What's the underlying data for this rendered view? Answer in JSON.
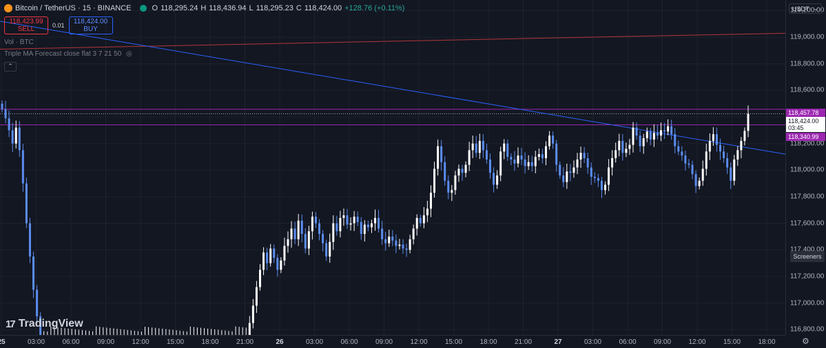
{
  "header": {
    "symbol": "Bitcoin / TetherUS · 15 · BINANCE",
    "o_label": "O",
    "o_value": "118,295.24",
    "h_label": "H",
    "h_value": "118,436.94",
    "l_label": "L",
    "l_value": "118,295.23",
    "c_label": "C",
    "c_value": "118,424.00",
    "change": "+128.76 (+0.11%)"
  },
  "trade": {
    "sell_price": "118,423.99",
    "sell_label": "SELL",
    "quantity": "0.01",
    "buy_price": "118,424.00",
    "buy_label": "BUY"
  },
  "indicators": {
    "volume": "Vol · BTC",
    "triple_ma": "Triple MA Forecast close flat 3 7 21 50"
  },
  "currency": "USDT",
  "screeners": "Screeners",
  "brand": "TradingView",
  "colors": {
    "up": "#ffffff",
    "down": "#5b8def",
    "ma_red": "#b2373b",
    "trend_blue": "#2962ff",
    "marker_purple": "#9c27b0"
  },
  "price_labels": {
    "upper_marker": "118,457.78",
    "current_price": "118,424.00",
    "countdown": "03:45",
    "lower_marker": "118,340.99"
  },
  "chart_data": {
    "type": "candlestick",
    "y_axis_ticks": [
      "119,200.00",
      "119,000.00",
      "118,800.00",
      "118,600.00",
      "118,400.00",
      "118,200.00",
      "118,000.00",
      "117,800.00",
      "117,600.00",
      "117,400.00",
      "117,200.00",
      "117,000.00",
      "116,800.00"
    ],
    "x_axis_ticks": [
      "25",
      "03:00",
      "06:00",
      "09:00",
      "12:00",
      "15:00",
      "18:00",
      "21:00",
      "26",
      "03:00",
      "06:00",
      "09:00",
      "12:00",
      "15:00",
      "18:00",
      "21:00",
      "27",
      "03:00",
      "06:00",
      "09:00",
      "12:00",
      "15:00",
      "18:00"
    ],
    "ylim": [
      116760,
      119280
    ],
    "current_price": 118424,
    "horizontal_lines": [
      118457.78,
      118340.99
    ],
    "ma_line": {
      "from": 118910,
      "to": 119030
    },
    "trend_line": {
      "from": 119120,
      "to": 118120
    },
    "closes": [
      118460,
      118390,
      118300,
      118200,
      118320,
      118150,
      117900,
      117600,
      117350,
      117100,
      116900,
      116760,
      116760,
      116760,
      116760,
      116760,
      116760,
      116760,
      116760,
      116760,
      116760,
      116760,
      116760,
      116760,
      116760,
      116760,
      116760,
      116760,
      116760,
      116760,
      116760,
      116760,
      116760,
      116760,
      116760,
      116760,
      116760,
      116760,
      116760,
      116760,
      116760,
      116760,
      116760,
      116760,
      116760,
      116760,
      116760,
      116760,
      116760,
      116760,
      116760,
      116760,
      116760,
      116760,
      116760,
      116760,
      116760,
      116760,
      116760,
      116760,
      116760,
      116760,
      116760,
      116760,
      116760,
      116760,
      116760,
      116760,
      116760,
      116760,
      116760,
      116850,
      116980,
      117120,
      117250,
      117380,
      117300,
      117410,
      117340,
      117250,
      117320,
      117430,
      117480,
      117560,
      117480,
      117620,
      117520,
      117410,
      117540,
      117650,
      117600,
      117520,
      117450,
      117350,
      117460,
      117600,
      117540,
      117640,
      117660,
      117590,
      117600,
      117650,
      117610,
      117520,
      117590,
      117570,
      117600,
      117640,
      117560,
      117480,
      117450,
      117500,
      117470,
      117430,
      117440,
      117410,
      117400,
      117480,
      117560,
      117640,
      117600,
      117660,
      117710,
      117830,
      118010,
      118180,
      118060,
      117920,
      117830,
      117850,
      117960,
      118010,
      117980,
      118040,
      118150,
      118200,
      118130,
      118220,
      118150,
      118080,
      117980,
      117890,
      117960,
      118140,
      118200,
      118100,
      118080,
      118050,
      118110,
      118080,
      118030,
      118060,
      118030,
      118100,
      118120,
      118090,
      118180,
      118260,
      118200,
      118040,
      117960,
      117910,
      117990,
      117980,
      118020,
      118080,
      118130,
      118090,
      118020,
      117950,
      117940,
      117920,
      117850,
      117890,
      118020,
      118090,
      118150,
      118220,
      118130,
      118160,
      118190,
      118320,
      118260,
      118180,
      118240,
      118290,
      118230,
      118280,
      118260,
      118300,
      118290,
      118330,
      118270,
      118180,
      118140,
      118110,
      118050,
      118040,
      117970,
      117880,
      117920,
      118010,
      118140,
      118220,
      118270,
      118190,
      118140,
      118090,
      118020,
      117920,
      118080,
      118150,
      118220,
      118295,
      118424
    ]
  }
}
